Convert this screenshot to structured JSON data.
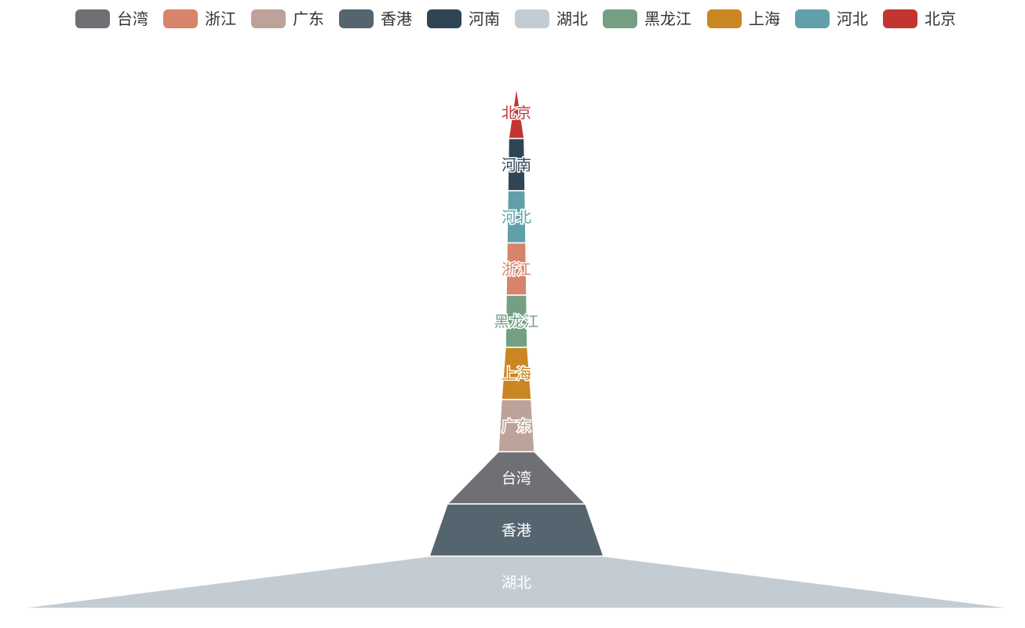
{
  "chart_data": {
    "type": "funnel",
    "sort": "ascending",
    "label_position": "inside",
    "legend_position": "top-center",
    "legend": [
      {
        "name": "台湾",
        "color": "#6e7074"
      },
      {
        "name": "浙江",
        "color": "#d7846a"
      },
      {
        "name": "广东",
        "color": "#bda29a"
      },
      {
        "name": "香港",
        "color": "#546570"
      },
      {
        "name": "河南",
        "color": "#2f4554"
      },
      {
        "name": "湖北",
        "color": "#c4ccd3"
      },
      {
        "name": "黑龙江",
        "color": "#749f83"
      },
      {
        "name": "上海",
        "color": "#ca8622"
      },
      {
        "name": "河北",
        "color": "#61a0a8"
      },
      {
        "name": "北京",
        "color": "#c23531"
      }
    ],
    "stack_order_top_to_bottom": [
      "北京",
      "河南",
      "河北",
      "浙江",
      "黑龙江",
      "上海",
      "广东",
      "台湾",
      "香港",
      "湖北"
    ],
    "widths_at_boundaries": [
      0,
      20,
      22,
      24,
      26,
      28,
      38,
      46,
      176,
      222,
      1270
    ],
    "values": [
      {
        "name": "北京",
        "value": 10
      },
      {
        "name": "河南",
        "value": 21
      },
      {
        "name": "河北",
        "value": 23
      },
      {
        "name": "浙江",
        "value": 25
      },
      {
        "name": "黑龙江",
        "value": 27
      },
      {
        "name": "上海",
        "value": 33
      },
      {
        "name": "广东",
        "value": 42
      },
      {
        "name": "台湾",
        "value": 111
      },
      {
        "name": "香港",
        "value": 199
      },
      {
        "name": "湖北",
        "value": 746
      }
    ]
  }
}
